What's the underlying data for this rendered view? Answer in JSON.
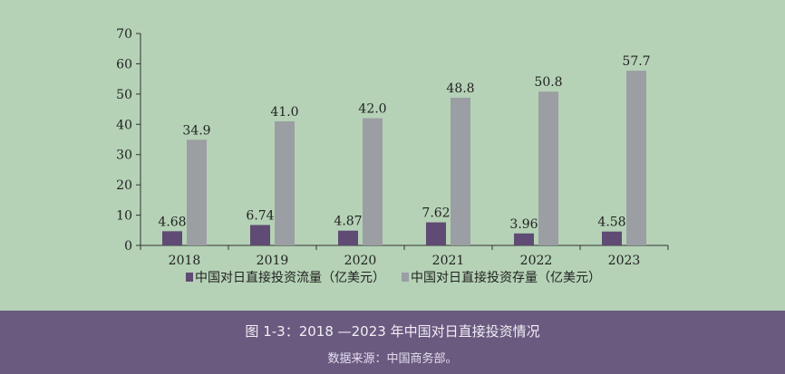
{
  "colors": {
    "background": "#b5d2b6",
    "flow": "#5f4b73",
    "stock": "#9b9ea3",
    "band": "#6a5a7f"
  },
  "caption": {
    "title": "图 1-3：2018 —2023 年中国对日直接投资情况",
    "source": "数据来源：中国商务部。"
  },
  "chart_data": {
    "type": "bar",
    "categories": [
      "2018",
      "2019",
      "2020",
      "2021",
      "2022",
      "2023"
    ],
    "series": [
      {
        "name": "中国对日直接投资流量（亿美元）",
        "values": [
          4.68,
          6.74,
          4.87,
          7.62,
          3.96,
          4.58
        ],
        "labels": [
          "4.68",
          "6.74",
          "4.87",
          "7.62",
          "3.96",
          "4.58"
        ]
      },
      {
        "name": "中国对日直接投资存量（亿美元）",
        "values": [
          34.9,
          41.0,
          42.0,
          48.8,
          50.8,
          57.7
        ],
        "labels": [
          "34.9",
          "41.0",
          "42.0",
          "48.8",
          "50.8",
          "57.7"
        ]
      }
    ],
    "ylim": [
      0,
      70
    ],
    "yticks": [
      "0",
      "10",
      "20",
      "30",
      "40",
      "50",
      "60",
      "70"
    ],
    "legend": "bottom",
    "grid": false
  }
}
